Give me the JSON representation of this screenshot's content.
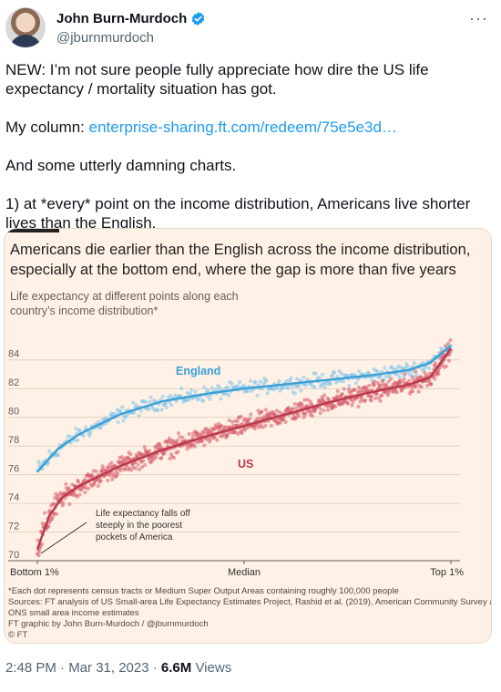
{
  "author": {
    "name": "John Burn-Murdoch",
    "handle": "@jburnmurdoch"
  },
  "tweet": {
    "line1": "NEW: I’m not sure people fully appreciate how dire the US life expectancy / mortality situation has got.",
    "column_prefix": "My column: ",
    "column_link": "enterprise-sharing.ft.com/redeem/75e5e3d…",
    "line3": "And some utterly damning charts.",
    "line4": "1) at *every* point on the income distribution, Americans live shorter lives than the English."
  },
  "chart_card": {
    "title": "Americans die earlier than the English across the income distribution, especially at the bottom end, where the gap is more than five years",
    "subtitle": "Life expectancy at different points along each country’s income distribution*",
    "annotation": [
      "Life expectancy falls off",
      "steeply in the poorest",
      "pockets of America"
    ],
    "footnote1": "*Each dot represents census tracts or Medium Super Output Areas containing roughly 100,000 people",
    "footnote2": "Sources: FT analysis of US Small-area Life Expectancy Estimates Project, Rashid et al. (2019), American Community Survey and",
    "footnote3": "ONS small area income estimates",
    "footnote4": "FT graphic by John Burn-Murdoch / @jburnmurdoch",
    "footnote5": "© FT"
  },
  "chart_data": {
    "type": "scatter",
    "ylim": [
      70,
      85
    ],
    "yticks": [
      70,
      72,
      74,
      76,
      78,
      80,
      82,
      84
    ],
    "xtick_labels": [
      "Bottom 1%",
      "Median",
      "Top 1%"
    ],
    "series": [
      {
        "name": "England",
        "color": "#3b9fd6",
        "trend_x": [
          0,
          0.05,
          0.1,
          0.2,
          0.3,
          0.4,
          0.5,
          0.6,
          0.7,
          0.8,
          0.9,
          0.95,
          1.0
        ],
        "trend_y": [
          76.2,
          77.8,
          78.8,
          80.2,
          81.1,
          81.6,
          82.0,
          82.3,
          82.6,
          82.9,
          83.3,
          83.8,
          85.0
        ]
      },
      {
        "name": "US",
        "color": "#b83a4b",
        "trend_x": [
          0,
          0.03,
          0.06,
          0.1,
          0.2,
          0.3,
          0.4,
          0.5,
          0.6,
          0.7,
          0.8,
          0.9,
          0.95,
          1.0
        ],
        "trend_y": [
          70.8,
          73.2,
          74.4,
          75.2,
          76.6,
          77.7,
          78.6,
          79.4,
          80.2,
          81.0,
          81.7,
          82.3,
          82.8,
          84.8
        ]
      }
    ]
  },
  "meta": {
    "time": "2:48 PM · Mar 31, 2023 · ",
    "views_count": "6.6M",
    "views_label": " Views"
  }
}
